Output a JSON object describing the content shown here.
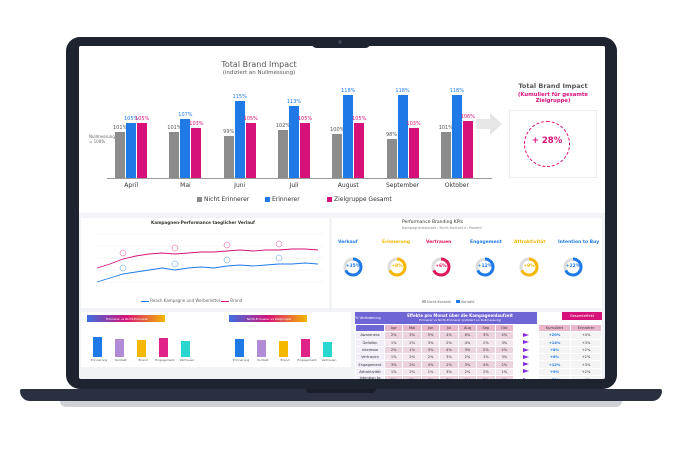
{
  "top_chart": {
    "title": "Total Brand Impact",
    "subtitle": "(indiziert an Nullmessung)",
    "y_note": "Nullmessung\n= 100%",
    "legend": [
      "Nicht Erinnerer",
      "Erinnerer",
      "Zielgruppe Gesamt"
    ],
    "colors": {
      "nicht": "#8c8c8c",
      "erinnerer": "#1f7ae8",
      "zielgruppe": "#d6127a"
    }
  },
  "chart_data": [
    {
      "type": "bar",
      "title": "Total Brand Impact",
      "subtitle": "(indiziert an Nullmessung)",
      "categories": [
        "April",
        "Mai",
        "Juni",
        "Juli",
        "August",
        "September",
        "Oktober"
      ],
      "series": [
        {
          "name": "Nicht Erinnerer",
          "values": [
            101,
            101,
            99,
            102,
            100,
            98,
            101
          ]
        },
        {
          "name": "Erinnerer",
          "values": [
            105,
            107,
            115,
            113,
            118,
            118,
            118
          ]
        },
        {
          "name": "Zielgruppe Gesamt",
          "values": [
            105,
            103,
            105,
            105,
            105,
            103,
            106
          ]
        }
      ],
      "value_labels": {
        "Nicht Erinnerer": [
          "101%",
          "101%",
          "99%",
          "102%",
          "100%",
          "98%",
          "101%"
        ],
        "Erinnerer": [
          "105%",
          "107%",
          "115%",
          "113%",
          "118%",
          "118%",
          "118%"
        ],
        "Zielgruppe Gesamt": [
          "105%",
          "103%",
          "105%",
          "105%",
          "105%",
          "103%",
          "106%"
        ]
      },
      "ylim": [
        80,
        120
      ]
    }
  ],
  "summary": {
    "title": "Total Brand Impact",
    "subtitle": "(Kumuliert für gesamte Zielgruppe)",
    "value": "+ 28%"
  },
  "line_panel": {
    "title": "Kampagnen-Performance taeglicher Verlauf",
    "legend_a": "Reach Kampagne und Werbemittel",
    "legend_b": "Brand"
  },
  "kpi_panel": {
    "title": "Performance Branding KPIs",
    "subtitle": "Kampagnenkontakt / Nicht-Kontakt in Prozent",
    "items": [
      {
        "label": "Verkauf",
        "value": "+35%",
        "color": "#1f7ae8"
      },
      {
        "label": "Erinnerung",
        "value": "+8%",
        "color": "#f5b700"
      },
      {
        "label": "Vertrauen",
        "value": "+6%",
        "color": "#e0185a"
      },
      {
        "label": "Engagement",
        "value": "+12%",
        "color": "#1f7ae8"
      },
      {
        "label": "Attraktivität",
        "value": "+9%",
        "color": "#f5b700"
      },
      {
        "label": "Intention to Buy",
        "value": "+22%",
        "color": "#1f7ae8"
      }
    ],
    "legend_a": "Nicht-Kontakt",
    "legend_b": "Kontakt"
  },
  "mini_charts": [
    {
      "label": "Erinnerer vs Nicht-Erinnerer",
      "categories": [
        "Erinnerung",
        "Kontakt",
        "Brand",
        "Engagement",
        "Vertrauen"
      ],
      "values": [
        20,
        18,
        17,
        19,
        16
      ]
    },
    {
      "label": "Nicht-Erinnerer vs Zielgruppe",
      "categories": [
        "Erinnerung",
        "Kontakt",
        "Brand",
        "Engagement",
        "Vertrauen"
      ],
      "values": [
        18,
        17,
        16,
        18,
        15
      ]
    }
  ],
  "table": {
    "title": "Effekte pro Monat über die Kampagnenlaufzeit",
    "subtitle": "Erinnerer vs Nicht-Erinnerer (indiziert an Nullmessung)",
    "right_title": "Gesamteffekt",
    "first_col": "% Veränderung",
    "months": [
      "Apr",
      "Mai",
      "Jun",
      "Jul",
      "Aug",
      "Sep",
      "Okt"
    ],
    "right_cols": [
      "Kumuliert",
      "Erinnerer"
    ],
    "rows": [
      {
        "name": "Awareness",
        "cells": [
          "2%",
          "3%",
          "5%",
          "4%",
          "6%",
          "3%",
          "4%"
        ],
        "total": "+20%",
        "r2": "+4%"
      },
      {
        "name": "Gefallen",
        "cells": [
          "1%",
          "2%",
          "3%",
          "2%",
          "4%",
          "2%",
          "3%"
        ],
        "total": "+14%",
        "r2": "+3%"
      },
      {
        "name": "Interesse",
        "cells": [
          "2%",
          "1%",
          "3%",
          "4%",
          "3%",
          "2%",
          "2%"
        ],
        "total": "+8%",
        "r2": "+2%"
      },
      {
        "name": "Vertrauen",
        "cells": [
          "1%",
          "2%",
          "2%",
          "3%",
          "2%",
          "1%",
          "3%"
        ],
        "total": "+6%",
        "r2": "+2%"
      },
      {
        "name": "Engagement",
        "cells": [
          "3%",
          "2%",
          "4%",
          "2%",
          "3%",
          "4%",
          "2%"
        ],
        "total": "+12%",
        "r2": "+3%"
      },
      {
        "name": "Attraktivität",
        "cells": [
          "1%",
          "2%",
          "1%",
          "3%",
          "2%",
          "2%",
          "1%"
        ],
        "total": "+9%",
        "r2": "+2%"
      },
      {
        "name": "Intention to Buy",
        "cells": [
          "2%",
          "3%",
          "4%",
          "3%",
          "5%",
          "3%",
          "4%"
        ],
        "total": "+22%",
        "r2": "+4%"
      },
      {
        "name": "Total Brand Impact",
        "cells": [
          "+2%",
          "+3%",
          "+5%",
          "+4%",
          "+5%",
          "+3%",
          "+6%"
        ],
        "total": "+28%",
        "r2": "+5%"
      }
    ]
  }
}
